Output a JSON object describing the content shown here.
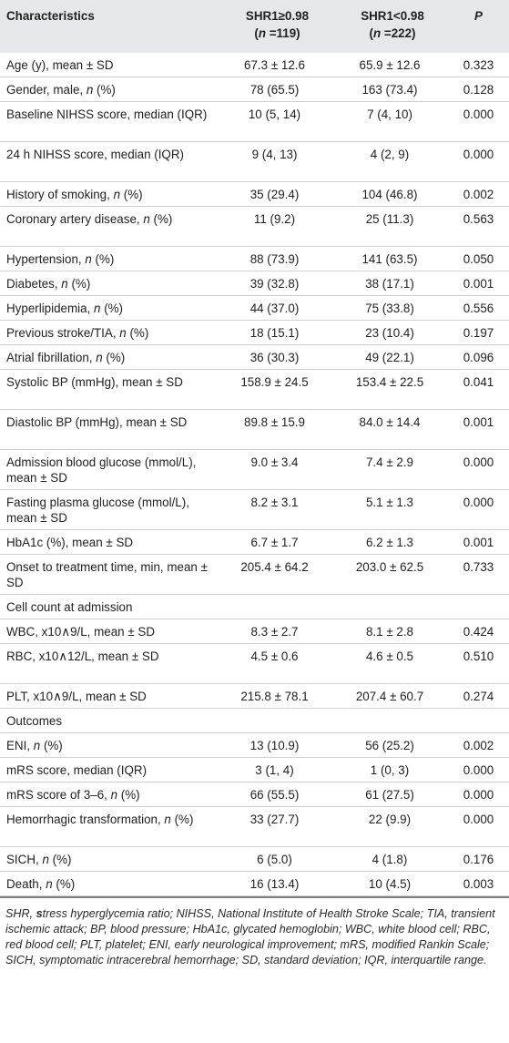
{
  "header": {
    "characteristics": "Characteristics",
    "group1_line1": "SHR1≥0.98",
    "group1_n_label": "n",
    "group1_n_value": " =119)",
    "group2_line1": "SHR1<0.98",
    "group2_n_label": "n",
    "group2_n_value": " =222)",
    "p": "P"
  },
  "rows": [
    {
      "label": "Age (y), mean ± SD",
      "g1": "67.3 ± 12.6",
      "g2": "65.9 ± 12.6",
      "p": "0.323"
    },
    {
      "label_pre": "Gender, male, ",
      "label_it": "n",
      "label_post": " (%)",
      "g1": "78 (65.5)",
      "g2": "163 (73.4)",
      "p": "0.128"
    },
    {
      "label": "Baseline NIHSS score, median (IQR)",
      "g1": "10 (5, 14)",
      "g2": "7 (4, 10)",
      "p": "0.000"
    },
    {
      "label": "24 h NIHSS score, median (IQR)",
      "g1": "9 (4, 13)",
      "g2": "4 (2, 9)",
      "p": "0.000"
    },
    {
      "label_pre": "History of smoking, ",
      "label_it": "n",
      "label_post": " (%)",
      "g1": "35 (29.4)",
      "g2": "104 (46.8)",
      "p": "0.002"
    },
    {
      "label_pre": "Coronary artery disease, ",
      "label_it": "n",
      "label_post": " (%)",
      "g1": "11 (9.2)",
      "g2": "25 (11.3)",
      "p": "0.563"
    },
    {
      "label_pre": "Hypertension, ",
      "label_it": "n",
      "label_post": " (%)",
      "g1": "88 (73.9)",
      "g2": "141 (63.5)",
      "p": "0.050"
    },
    {
      "label_pre": "Diabetes, ",
      "label_it": "n",
      "label_post": " (%)",
      "g1": "39 (32.8)",
      "g2": "38 (17.1)",
      "p": "0.001"
    },
    {
      "label_pre": "Hyperlipidemia, ",
      "label_it": "n",
      "label_post": " (%)",
      "g1": "44 (37.0)",
      "g2": "75 (33.8)",
      "p": "0.556"
    },
    {
      "label_pre": "Previous stroke/TIA, ",
      "label_it": "n",
      "label_post": " (%)",
      "g1": "18 (15.1)",
      "g2": "23 (10.4)",
      "p": "0.197"
    },
    {
      "label_pre": "Atrial fibrillation, ",
      "label_it": "n",
      "label_post": " (%)",
      "g1": "36 (30.3)",
      "g2": "49 (22.1)",
      "p": "0.096"
    },
    {
      "label": "Systolic BP (mmHg), mean ± SD",
      "g1": "158.9 ± 24.5",
      "g2": "153.4 ± 22.5",
      "p": "0.041"
    },
    {
      "label": "Diastolic BP (mmHg), mean ± SD",
      "g1": "89.8 ± 15.9",
      "g2": "84.0 ± 14.4",
      "p": "0.001"
    },
    {
      "label": "Admission blood glucose (mmol/L), mean ± SD",
      "g1": "9.0 ± 3.4",
      "g2": "7.4 ± 2.9",
      "p": "0.000"
    },
    {
      "label": "Fasting plasma glucose (mmol/L), mean ± SD",
      "g1": "8.2 ± 3.1",
      "g2": "5.1 ± 1.3",
      "p": "0.000"
    },
    {
      "label": "HbA1c (%), mean ± SD",
      "g1": "6.7 ± 1.7",
      "g2": "6.2 ± 1.3",
      "p": "0.001"
    },
    {
      "label": "Onset to treatment time, min, mean ± SD",
      "g1": "205.4 ± 64.2",
      "g2": "203.0 ± 62.5",
      "p": "0.733"
    },
    {
      "label": "Cell count at admission",
      "g1": "",
      "g2": "",
      "p": ""
    },
    {
      "label": "WBC, x10∧9/L, mean ± SD",
      "g1": "8.3 ± 2.7",
      "g2": "8.1 ± 2.8",
      "p": "0.424"
    },
    {
      "label": "RBC, x10∧12/L, mean ± SD",
      "g1": "4.5 ± 0.6",
      "g2": "4.6 ± 0.5",
      "p": "0.510"
    },
    {
      "label": "PLT, x10∧9/L, mean ± SD",
      "g1": "215.8 ± 78.1",
      "g2": "207.4 ± 60.7",
      "p": "0.274"
    },
    {
      "label": "Outcomes",
      "g1": "",
      "g2": "",
      "p": ""
    },
    {
      "label_pre": "ENI, ",
      "label_it": "n",
      "label_post": " (%)",
      "g1": "13 (10.9)",
      "g2": "56 (25.2)",
      "p": "0.002"
    },
    {
      "label": "mRS score, median (IQR)",
      "g1": "3 (1, 4)",
      "g2": "1 (0, 3)",
      "p": "0.000"
    },
    {
      "label_pre": "mRS score of 3–6, ",
      "label_it": "n",
      "label_post": " (%)",
      "g1": "66 (55.5)",
      "g2": "61 (27.5)",
      "p": "0.000"
    },
    {
      "label_pre": "Hemorrhagic transformation, ",
      "label_it": "n",
      "label_post": " (%)",
      "g1": "33 (27.7)",
      "g2": "22 (9.9)",
      "p": "0.000"
    },
    {
      "label_pre": "SICH, ",
      "label_it": "n",
      "label_post": " (%)",
      "g1": "6 (5.0)",
      "g2": "4 (1.8)",
      "p": "0.176"
    },
    {
      "label_pre": "Death, ",
      "label_it": "n",
      "label_post": " (%)",
      "g1": "16 (13.4)",
      "g2": "10 (4.5)",
      "p": "0.003"
    }
  ],
  "footnote": {
    "lead": "SHR, ",
    "bold_s": "s",
    "text": "tress hyperglycemia ratio; NIHSS, National Institute of Health Stroke Scale; TIA, transient ischemic attack; BP, blood pressure; HbA1c, glycated hemoglobin; WBC, white blood cell; RBC, red blood cell; PLT, platelet; ENI, early neurological improvement; mRS, modified Rankin Scale; SICH, symptomatic intracerebral hemorrhage; SD, standard deviation; IQR, interquartile range."
  }
}
